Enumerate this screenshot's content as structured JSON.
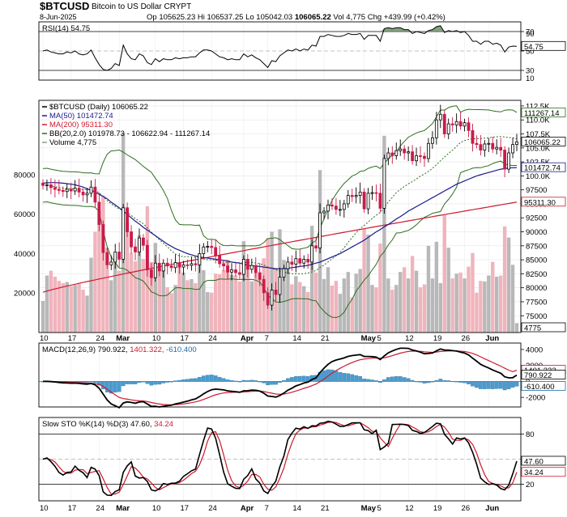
{
  "header": {
    "symbol": "$BTCUSD",
    "name": "Bitcoin to US Dollar",
    "exchange": "CRYPT",
    "date": "8-Jun-2025",
    "open_label": "Op",
    "open": "105625.23",
    "high_label": "Hi",
    "high": "106537.25",
    "low_label": "Lo",
    "low": "105042.03",
    "close": "106065.22",
    "vol_label": "Vol",
    "vol": "4,775",
    "chg_label": "Chg",
    "chg": "+439.99 (+0.42%)"
  },
  "colors": {
    "up": "#000000",
    "down": "#cc1a4a",
    "ma50": "#1a1a8c",
    "ma200": "#cc1a30",
    "bb": "#2e6e1e",
    "volume_up": "#b8b8b8",
    "volume_down": "#f0b4bc",
    "macd_hist": "#4a9cd0",
    "rsi_fill": "#6f8f6a"
  },
  "chart_data": [
    {
      "type": "line",
      "name": "price",
      "legend": {
        "main": "$BTCUSD (Daily) 106065.22",
        "ma50": "MA(50) 101472.74",
        "ma200": "MA(200) 95311.30",
        "bb": "BB(20,2.0) 101978.73 - 106622.94 - 111267.14",
        "volume": "Volume 4,775"
      },
      "ylim": [
        72000,
        113500
      ],
      "y_ticks": [
        75000,
        77500,
        80000,
        82500,
        85000,
        87500,
        90000,
        92500,
        95000,
        97500,
        100000,
        102500,
        105000,
        107500,
        110000,
        112500
      ],
      "y_tick_labels": [
        "75000",
        "77500",
        "80000",
        "82500",
        "85000",
        "87500",
        "90000",
        "92500",
        "95000",
        "97500",
        "100.0K",
        "102.5K",
        "105.0K",
        "107.5K",
        "110.0K",
        "112.5K"
      ],
      "price_tags": [
        {
          "value": 111267.14,
          "label": "111267.14",
          "color": "#2e6e1e"
        },
        {
          "value": 106065.22,
          "label": "106065.22",
          "color": "#000000"
        },
        {
          "value": 101472.74,
          "label": "101472.74",
          "color": "#1a1a8c"
        },
        {
          "value": 95311.3,
          "label": "95311.30",
          "color": "#cc1a30"
        }
      ],
      "volume_ticks": [
        20000,
        40000,
        60000,
        80000
      ],
      "volume_tick_labels": [
        "20000",
        "40000",
        "60000",
        "80000"
      ],
      "volume_tag": "4775",
      "x_ticks": [
        {
          "i": 0,
          "label": "10"
        },
        {
          "i": 7,
          "label": "17"
        },
        {
          "i": 14,
          "label": "24"
        },
        {
          "i": 19,
          "label": "Mar"
        },
        {
          "i": 28,
          "label": "10"
        },
        {
          "i": 35,
          "label": "17"
        },
        {
          "i": 42,
          "label": "24"
        },
        {
          "i": 50,
          "label": "Apr"
        },
        {
          "i": 56,
          "label": "7"
        },
        {
          "i": 63,
          "label": "14"
        },
        {
          "i": 70,
          "label": "21"
        },
        {
          "i": 80,
          "label": "May"
        },
        {
          "i": 84,
          "label": "5"
        },
        {
          "i": 91,
          "label": "12"
        },
        {
          "i": 98,
          "label": "19"
        },
        {
          "i": 105,
          "label": "26"
        },
        {
          "i": 111,
          "label": "Jun"
        }
      ],
      "close": [
        98300,
        98400,
        97900,
        97600,
        97400,
        97200,
        97600,
        97300,
        97800,
        97100,
        96600,
        96900,
        98000,
        95300,
        91300,
        86300,
        84100,
        84600,
        86400,
        85100,
        94300,
        90000,
        87300,
        86400,
        88900,
        87600,
        83200,
        81800,
        84400,
        83000,
        84400,
        83900,
        83600,
        84500,
        83700,
        84100,
        84000,
        84300,
        84100,
        86100,
        87300,
        87400,
        87200,
        85800,
        84300,
        83900,
        82800,
        83200,
        82700,
        82400,
        85100,
        83300,
        84000,
        82700,
        81500,
        79100,
        76900,
        79600,
        78800,
        81900,
        83400,
        84600,
        84200,
        85200,
        84400,
        85100,
        84600,
        87500,
        87100,
        93400,
        93700,
        94800,
        94600,
        94000,
        94000,
        95000,
        96500,
        96300,
        96500,
        97100,
        94100,
        96900,
        97000,
        96900,
        94200,
        103100,
        104100,
        103600,
        104500,
        104800,
        104100,
        104300,
        102700,
        103600,
        103500,
        103100,
        105800,
        106800,
        110000,
        111000,
        107500,
        109300,
        109100,
        109700,
        108900,
        109500,
        108100,
        105800,
        105600,
        104600,
        105700,
        105800,
        104800,
        105100,
        104600,
        101200,
        104100,
        105600,
        106065
      ],
      "ma50": [
        98700,
        98750,
        98800,
        98800,
        98750,
        98700,
        98600,
        98500,
        98400,
        98200,
        98000,
        97700,
        97400,
        97100,
        96700,
        96300,
        95900,
        95300,
        94800,
        94300,
        93700,
        93100,
        92500,
        91900,
        91400,
        90800,
        90300,
        89800,
        89300,
        88800,
        88300,
        87800,
        87400,
        87000,
        86700,
        86400,
        86100,
        85900,
        85700,
        85500,
        85400,
        85300,
        85200,
        85100,
        85000,
        84900,
        84800,
        84600,
        84500,
        84400,
        84200,
        84000,
        83900,
        83900,
        83800,
        83700,
        83600,
        83500,
        83400,
        83400,
        83400,
        83500,
        83600,
        83700,
        83800,
        83900,
        84000,
        84200,
        84400,
        84600,
        84900,
        85200,
        85500,
        85800,
        86100,
        86500,
        86900,
        87300,
        87700,
        88100,
        88500,
        89000,
        89500,
        90000,
        90400,
        90900,
        91300,
        91800,
        92300,
        92700,
        93200,
        93700,
        94100,
        94500,
        94900,
        95300,
        95700,
        96100,
        96500,
        96900,
        97300,
        97700,
        98100,
        98500,
        98800,
        99100,
        99400,
        99700,
        100000,
        100200,
        100400,
        100600,
        100800,
        101000,
        101200,
        101300,
        101400,
        101450,
        101472
      ]
    },
    {
      "type": "line",
      "name": "rsi",
      "legend": "RSI(14) 54.75",
      "ylim": [
        20,
        80
      ],
      "y_ticks": [
        30,
        50,
        70
      ],
      "y_tick_labels": [
        "30",
        "50",
        "70"
      ],
      "extra_tick_labels": [
        "90",
        "10"
      ],
      "overbought": 70,
      "oversold": 30,
      "current_label": "54.75",
      "values": [
        50,
        51,
        49,
        48,
        47,
        47,
        49,
        48,
        50,
        47,
        46,
        47,
        51,
        43,
        36,
        31,
        30,
        32,
        37,
        35,
        56,
        47,
        42,
        41,
        47,
        45,
        38,
        36,
        42,
        39,
        42,
        41,
        41,
        43,
        42,
        43,
        43,
        44,
        44,
        48,
        51,
        51,
        50,
        47,
        44,
        43,
        41,
        42,
        41,
        41,
        47,
        44,
        46,
        43,
        41,
        37,
        33,
        40,
        39,
        45,
        48,
        51,
        50,
        52,
        50,
        52,
        51,
        56,
        55,
        65,
        65,
        67,
        66,
        65,
        65,
        66,
        68,
        67,
        67,
        68,
        62,
        66,
        66,
        66,
        60,
        73,
        74,
        73,
        74,
        74,
        72,
        72,
        68,
        70,
        69,
        68,
        71,
        72,
        75,
        76,
        69,
        71,
        70,
        71,
        69,
        70,
        66,
        60,
        60,
        57,
        60,
        60,
        57,
        58,
        56,
        49,
        54,
        55,
        54.75
      ]
    },
    {
      "type": "line",
      "name": "macd",
      "legend": {
        "title": "MACD(12,26,9)",
        "macd": "790.922",
        "signal": "1401.322",
        "hist": "-610.400"
      },
      "ylim": [
        -3200,
        4800
      ],
      "y_ticks": [
        -2000,
        0,
        2000,
        4000
      ],
      "y_tick_labels": [
        "-2000",
        "0",
        "2000",
        "4000"
      ],
      "tags": [
        {
          "value": 1401.322,
          "label": "1401.322",
          "color": "#cc1a30"
        },
        {
          "value": 790.922,
          "label": "790.922",
          "color": "#000000"
        },
        {
          "value": -610.4,
          "label": "-610.400",
          "color": "#1a6ea8"
        }
      ]
    },
    {
      "type": "line",
      "name": "slow_sto",
      "legend": {
        "title": "Slow STO %K(14) %D(3)",
        "k": "47.60",
        "d": "34.24"
      },
      "ylim": [
        0,
        100
      ],
      "y_ticks": [
        20,
        50,
        80
      ],
      "y_tick_labels": [
        "20",
        "",
        "80"
      ],
      "tags": [
        {
          "value": 47.6,
          "label": "47.60",
          "color": "#000000"
        },
        {
          "value": 34.24,
          "label": "34.24",
          "color": "#cc1a30"
        }
      ]
    }
  ]
}
